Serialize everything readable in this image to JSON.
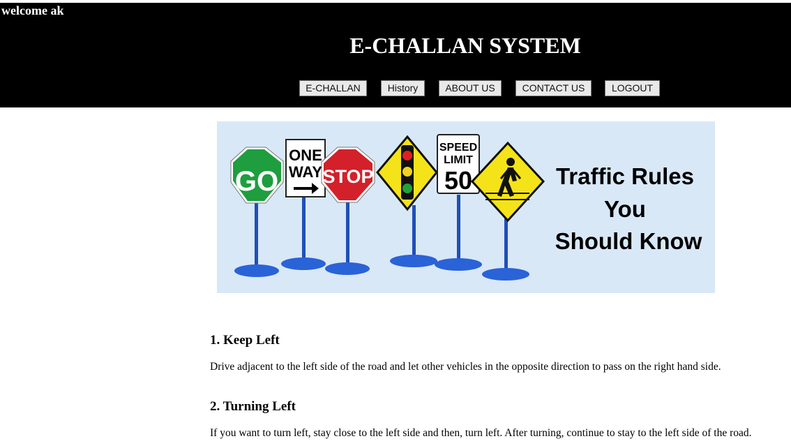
{
  "header": {
    "welcome_text": "welcome ak",
    "title": "E-CHALLAN SYSTEM",
    "background_color": "#000000"
  },
  "nav": {
    "items": [
      {
        "label": "E-CHALLAN"
      },
      {
        "label": "History"
      },
      {
        "label": "ABOUT US"
      },
      {
        "label": "CONTACT US"
      },
      {
        "label": "LOGOUT"
      }
    ]
  },
  "banner": {
    "line1": "Traffic Rules",
    "line2": "You",
    "line3": "Should Know",
    "signs": {
      "go": "GO",
      "one": "ONE",
      "way": "WAY",
      "stop": "STOP",
      "speed": "SPEED",
      "limit": "LIMIT",
      "limit_value": "50"
    },
    "background_color": "#d9e8f7"
  },
  "rules": [
    {
      "heading": "1. Keep Left",
      "text": "Drive adjacent to the left side of the road and let other vehicles in the opposite direction to pass on the right hand side."
    },
    {
      "heading": "2. Turning Left",
      "text": "If you want to turn left, stay close to the left side and then, turn left. After turning, continue to stay to the left side of the road."
    }
  ]
}
